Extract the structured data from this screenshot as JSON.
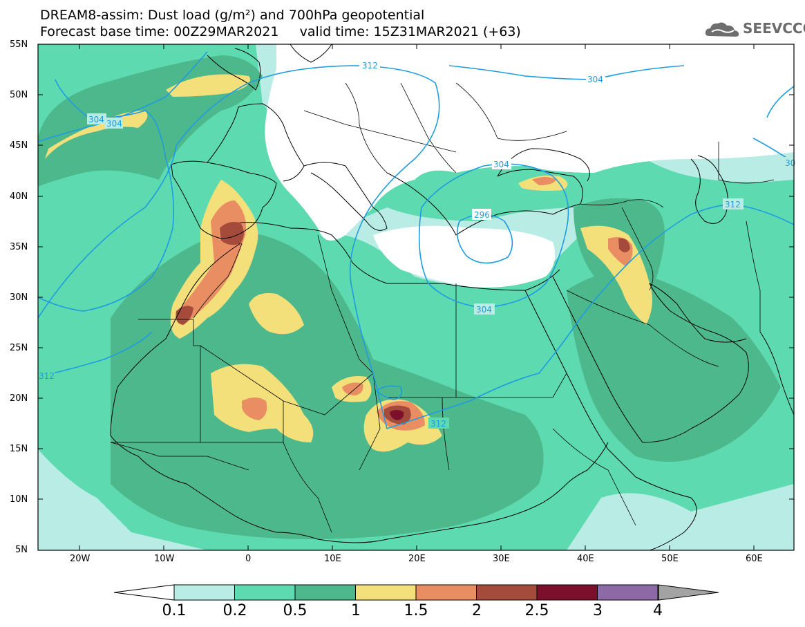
{
  "title_line1": "DREAM8-assim: Dust load (g/m²) and 700hPa geopotential",
  "title_line2": "Forecast base time: 00Z29MAR2021     valid time: 15Z31MAR2021 (+63)",
  "logo_text": "SEEVCCC",
  "lat_labels": [
    "55N",
    "50N",
    "45N",
    "40N",
    "35N",
    "30N",
    "25N",
    "20N",
    "15N",
    "10N",
    "5N"
  ],
  "lon_labels": [
    "20W",
    "10W",
    "0",
    "10E",
    "20E",
    "30E",
    "40E",
    "50E",
    "60E"
  ],
  "contour_labels": [
    "312",
    "304",
    "304",
    "312",
    "304",
    "304",
    "296",
    "304",
    "312",
    "312",
    "30"
  ],
  "colorbar": {
    "ticks": [
      "0.1",
      "0.2",
      "0.5",
      "1",
      "1.5",
      "2",
      "2.5",
      "3",
      "4"
    ],
    "colors": [
      "#ffffff",
      "#b9ece4",
      "#5ddab0",
      "#4db88c",
      "#f3e07a",
      "#e98e63",
      "#a44b3b",
      "#7c0f2c",
      "#8d6aa5",
      "#a3a3a3"
    ]
  },
  "dust_colors": {
    "lt01": "#ffffff",
    "c01_02": "#b9ece4",
    "c02_05": "#5ddab0",
    "c05_1": "#4db88c",
    "c1_15": "#f3e07a",
    "c15_2": "#e98e63",
    "c2_25": "#a44b3b",
    "c25_3": "#7c0f2c"
  }
}
